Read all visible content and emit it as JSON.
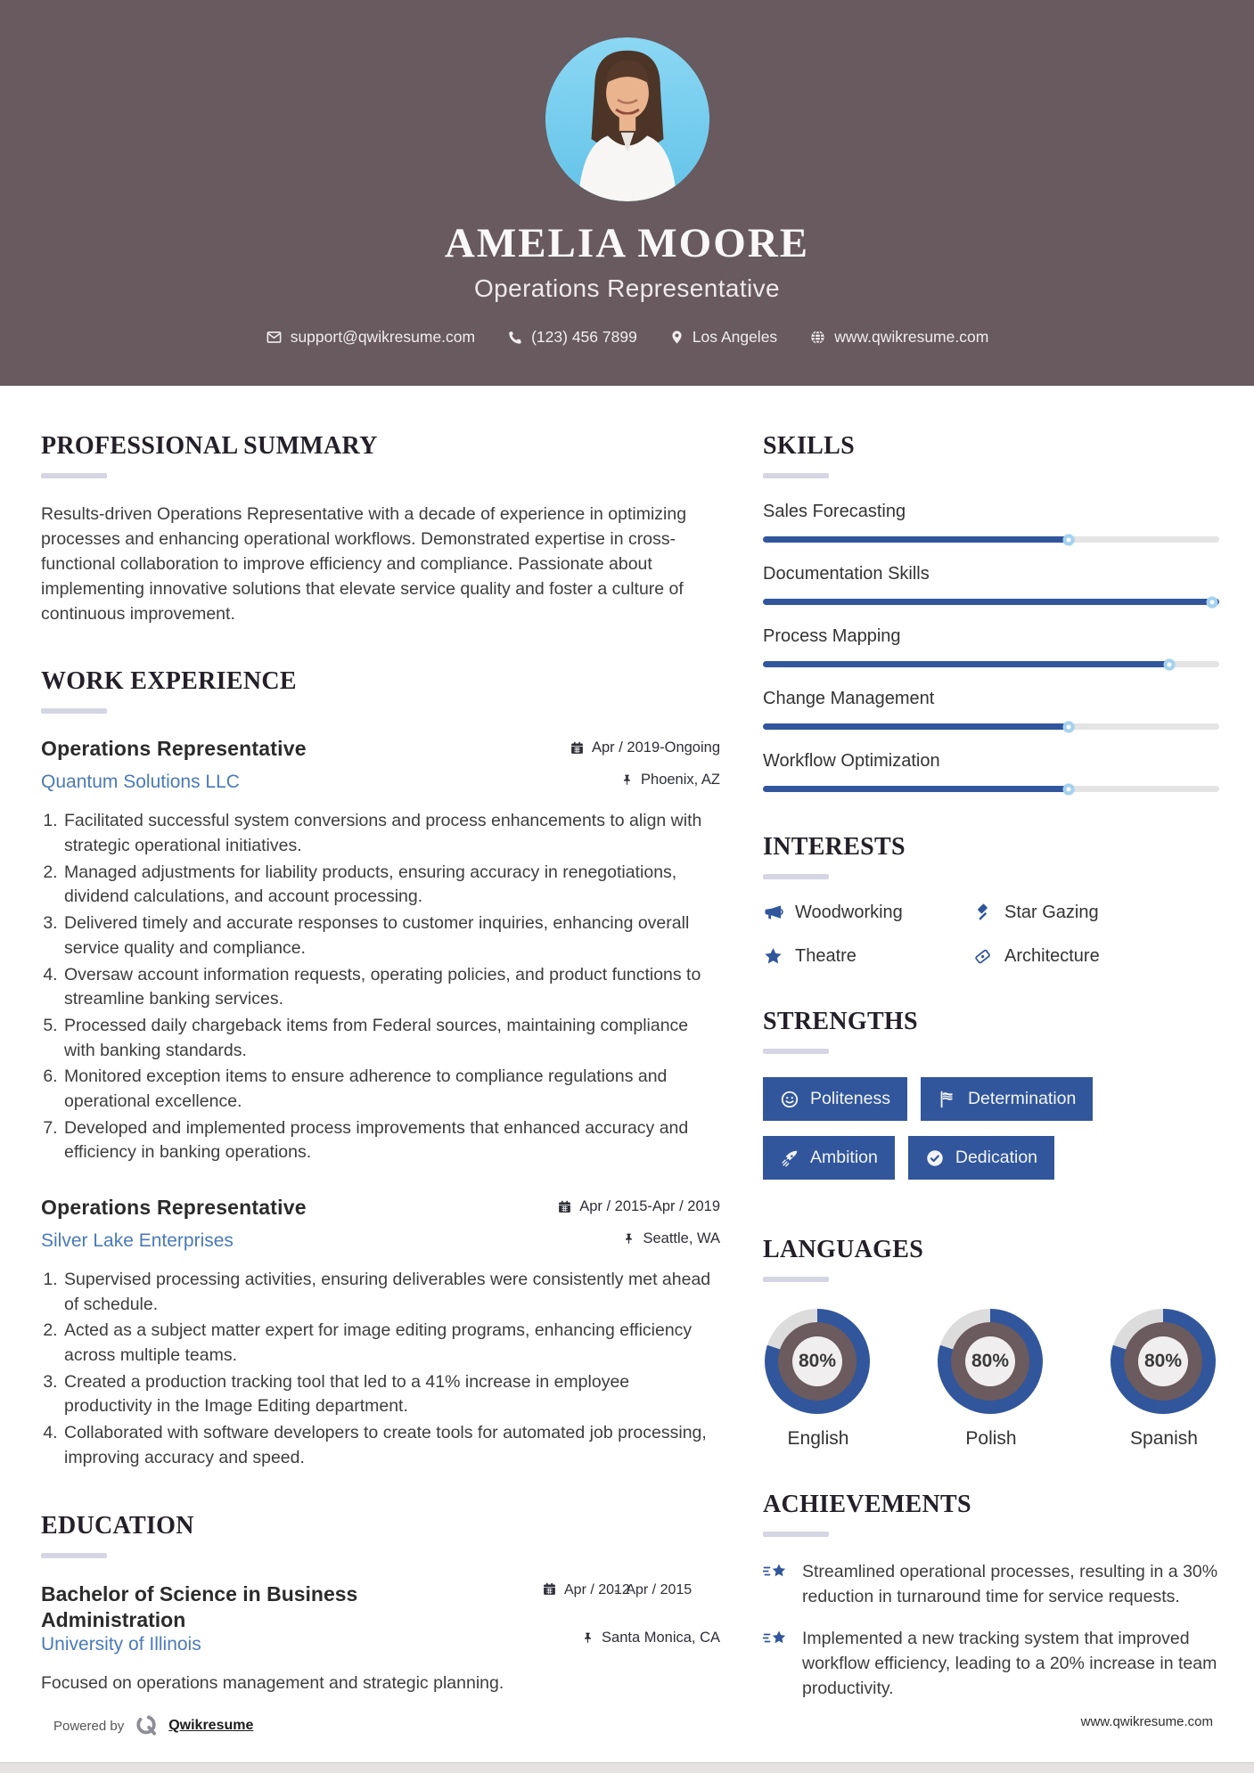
{
  "colors": {
    "header_bg": "#685a5e",
    "accent": "#31569c",
    "link": "#4a7ab9",
    "donut_track": "#dcdcdc",
    "donut_mid": "#6b5a5e",
    "section_bar": "#d5d5e4"
  },
  "header": {
    "name": "AMELIA MOORE",
    "title": "Operations Representative",
    "contact": {
      "email": {
        "icon": "envelope-icon",
        "value": "support@qwikresume.com"
      },
      "phone": {
        "icon": "phone-icon",
        "value": "(123) 456 7899"
      },
      "location": {
        "icon": "map-pin-icon",
        "value": "Los Angeles"
      },
      "website": {
        "icon": "globe-icon",
        "value": "www.qwikresume.com"
      }
    }
  },
  "summary": {
    "heading": "PROFESSIONAL SUMMARY",
    "text": "Results-driven Operations Representative with a decade of experience in optimizing processes and enhancing operational workflows. Demonstrated expertise in cross-functional collaboration to improve efficiency and compliance. Passionate about implementing innovative solutions that elevate service quality and foster a culture of continuous improvement."
  },
  "experience": {
    "heading": "WORK EXPERIENCE",
    "jobs": [
      {
        "title": "Operations Representative",
        "company": "Quantum Solutions LLC",
        "dates": "Apr / 2019-Ongoing",
        "location": "Phoenix, AZ",
        "bullets": [
          "Facilitated successful system conversions and process enhancements to align with strategic operational initiatives.",
          "Managed adjustments for liability products, ensuring accuracy in renegotiations, dividend calculations, and account processing.",
          "Delivered timely and accurate responses to customer inquiries, enhancing overall service quality and compliance.",
          "Oversaw account information requests, operating policies, and product functions to streamline banking services.",
          "Processed daily chargeback items from Federal sources, maintaining compliance with banking standards.",
          "Monitored exception items to ensure adherence to compliance regulations and operational excellence.",
          "Developed and implemented process improvements that enhanced accuracy and efficiency in banking operations."
        ]
      },
      {
        "title": "Operations Representative",
        "company": "Silver Lake Enterprises",
        "dates": "Apr / 2015-Apr / 2019",
        "location": "Seattle, WA",
        "bullets": [
          "Supervised processing activities, ensuring deliverables were consistently met ahead of schedule.",
          "Acted as a subject matter expert for image editing programs, enhancing efficiency across multiple teams.",
          "Created a production tracking tool that led to a 41% increase in employee productivity in the Image Editing department.",
          "Collaborated with software developers to create tools for automated job processing, improving accuracy and speed."
        ]
      }
    ]
  },
  "education": {
    "heading": "EDUCATION",
    "degree": "Bachelor of Science in Business Administration",
    "school": "University of Illinois",
    "start": "Apr / 2012",
    "dash": "-",
    "end": "Apr / 2015",
    "location": "Santa Monica, CA",
    "note": "Focused on operations management and strategic planning."
  },
  "skills": {
    "heading": "SKILLS",
    "items": [
      {
        "label": "Sales Forecasting",
        "level": 67
      },
      {
        "label": "Documentation Skills",
        "level": 100
      },
      {
        "label": "Process Mapping",
        "level": 89
      },
      {
        "label": "Change Management",
        "level": 67
      },
      {
        "label": "Workflow Optimization",
        "level": 67
      }
    ]
  },
  "interests": {
    "heading": "INTERESTS",
    "items": [
      {
        "icon": "megaphone-icon",
        "label": "Woodworking"
      },
      {
        "icon": "gavel-icon",
        "label": "Star Gazing"
      },
      {
        "icon": "star-icon",
        "label": "Theatre"
      },
      {
        "icon": "ticket-icon",
        "label": "Architecture"
      }
    ]
  },
  "strengths": {
    "heading": "STRENGTHS",
    "items": [
      {
        "icon": "smiley-icon",
        "label": "Politeness"
      },
      {
        "icon": "flag-icon",
        "label": "Determination"
      },
      {
        "icon": "rocket-icon",
        "label": "Ambition"
      },
      {
        "icon": "check-circle-icon",
        "label": "Dedication"
      }
    ]
  },
  "languages": {
    "heading": "LANGUAGES",
    "items": [
      {
        "name": "English",
        "percent": 80,
        "label": "80%"
      },
      {
        "name": "Polish",
        "percent": 80,
        "label": "80%"
      },
      {
        "name": "Spanish",
        "percent": 80,
        "label": "80%"
      }
    ]
  },
  "achievements": {
    "heading": "ACHIEVEMENTS",
    "items": [
      "Streamlined operational processes, resulting in a 30% reduction in turnaround time for service requests.",
      "Implemented a new tracking system that improved workflow efficiency, leading to a 20% increase in team productivity."
    ]
  },
  "footer": {
    "powered_by": "Powered by",
    "brand": "Qwikresume",
    "website": "www.qwikresume.com"
  }
}
